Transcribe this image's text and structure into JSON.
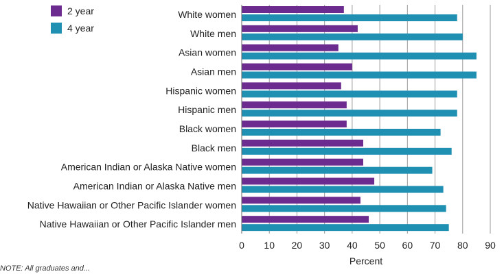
{
  "chart_data": {
    "type": "bar",
    "orientation": "horizontal",
    "categories": [
      "White women",
      "White men",
      "Asian women",
      "Asian men",
      "Hispanic women",
      "Hispanic men",
      "Black women",
      "Black men",
      "American Indian or Alaska Native women",
      "American Indian or Alaska Native men",
      "Native Hawaiian or Other Pacific Islander women",
      "Native Hawaiian or Other Pacific Islander men"
    ],
    "series": [
      {
        "name": "2 year",
        "color": "#6c2c8f",
        "values": [
          37,
          42,
          35,
          40,
          36,
          38,
          38,
          44,
          44,
          48,
          43,
          46
        ]
      },
      {
        "name": "4 year",
        "color": "#1f8fb2",
        "values": [
          78,
          80,
          85,
          85,
          78,
          78,
          72,
          76,
          69,
          73,
          74,
          75
        ]
      }
    ],
    "xlabel": "Percent",
    "xlim": [
      0,
      90
    ],
    "xticks": [
      0,
      10,
      20,
      30,
      40,
      50,
      60,
      70,
      80,
      90
    ],
    "grid": "vertical",
    "legend": "top-left"
  },
  "note": "NOTE: All graduates and..."
}
